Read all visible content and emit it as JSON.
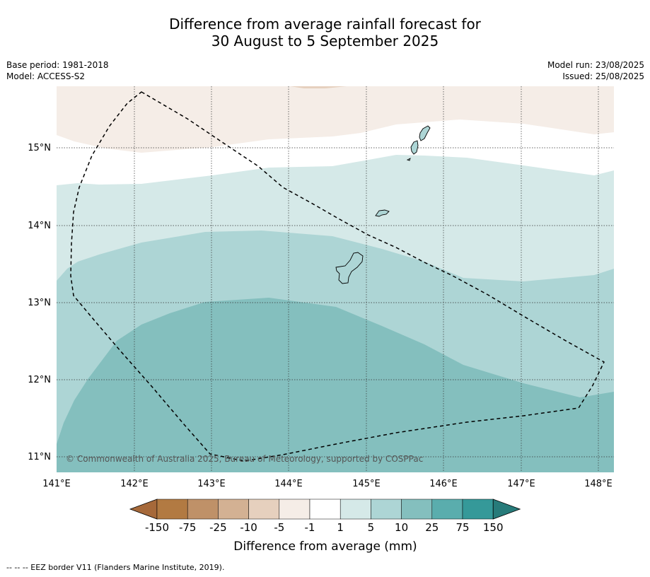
{
  "title_line1": "Difference from average rainfall forecast for",
  "title_line2": "30 August to 5 September 2025",
  "meta": {
    "base_period": "Base period: 1981-2018",
    "model": "Model: ACCESS-S2",
    "model_run": "Model run: 23/08/2025",
    "issued": "Issued: 25/08/2025"
  },
  "map": {
    "lon_range": [
      141.0,
      148.2
    ],
    "lat_range": [
      10.8,
      15.8
    ],
    "lon_ticks": [
      "141°E",
      "142°E",
      "143°E",
      "144°E",
      "145°E",
      "146°E",
      "147°E",
      "148°E"
    ],
    "lat_ticks": [
      "15°N",
      "14°N",
      "13°N",
      "12°N",
      "11°N"
    ],
    "copyright": "© Commonwealth of Australia 2025, Bureau of Meteorology, supported by COSPPac"
  },
  "colorbar": {
    "ticks": [
      "-150",
      "-75",
      "-25",
      "-10",
      "-5",
      "-1",
      "1",
      "5",
      "10",
      "25",
      "75",
      "150"
    ],
    "colors": [
      "#a6693a",
      "#b27a42",
      "#bf9168",
      "#d3b193",
      "#e6d0be",
      "#f5ede7",
      "#ffffff",
      "#d5e9e8",
      "#add5d5",
      "#84bfbe",
      "#5aadad",
      "#359999",
      "#277b7a"
    ],
    "label": "Difference from average (mm)"
  },
  "legend_note": "--  --  -- EEZ border V11 (Flanders Marine Institute, 2019).",
  "colors": {
    "ocean_land_boundary": "#000000",
    "gridline": "#333333"
  }
}
